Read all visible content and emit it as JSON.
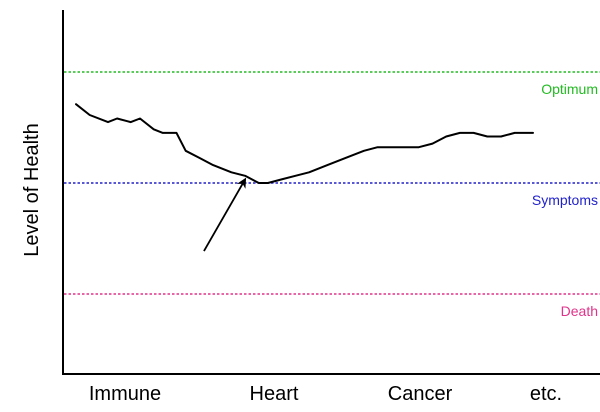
{
  "chart_data": {
    "type": "line",
    "title": "",
    "xlabel": "",
    "ylabel": "Level of Health",
    "categories": [
      "Immune",
      "Heart",
      "Cancer",
      "etc."
    ],
    "grid": false,
    "legend": "none",
    "ylim": [
      0,
      100
    ],
    "xlim": [
      0,
      100
    ],
    "reference_lines": [
      {
        "label": "Optimum",
        "value": 90,
        "color": "#22bb22"
      },
      {
        "label": "Symptoms",
        "value": 59,
        "color": "#2222cc"
      },
      {
        "label": "Death",
        "value": 28,
        "color": "#e0338a"
      }
    ],
    "series": [
      {
        "color": "#000000",
        "x": [
          0,
          3,
          7,
          9,
          12,
          14,
          17,
          19,
          22,
          24,
          27,
          30,
          34,
          37,
          40,
          42,
          45,
          48,
          51,
          55,
          59,
          63,
          66,
          69,
          72,
          75,
          78,
          81,
          84,
          87,
          90,
          93,
          96,
          100
        ],
        "y": [
          81,
          78,
          76,
          77,
          76,
          77,
          74,
          73,
          73,
          68,
          66,
          64,
          62,
          61,
          59,
          59,
          60,
          61,
          62,
          64,
          66,
          68,
          69,
          69,
          69,
          69,
          70,
          72,
          73,
          73,
          72,
          72,
          73,
          73
        ]
      }
    ],
    "annotations": [
      {
        "type": "arrow",
        "from": [
          28,
          40
        ],
        "to": [
          37,
          60
        ]
      }
    ]
  }
}
